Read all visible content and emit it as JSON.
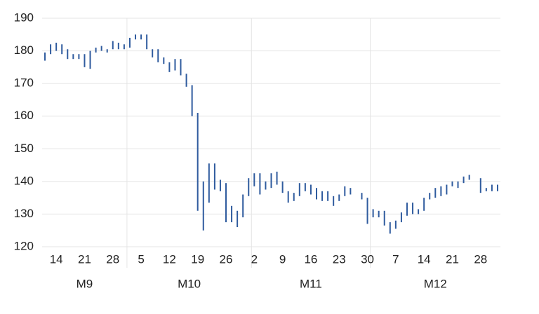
{
  "chart_data": {
    "type": "range",
    "categories": [
      null,
      null,
      "14",
      null,
      null,
      null,
      null,
      "21",
      null,
      null,
      null,
      null,
      "28",
      null,
      null,
      null,
      null,
      "5",
      null,
      null,
      null,
      null,
      "12",
      null,
      null,
      null,
      null,
      "19",
      null,
      null,
      null,
      null,
      "26",
      null,
      null,
      null,
      null,
      "2",
      null,
      null,
      null,
      null,
      "9",
      null,
      null,
      null,
      null,
      "16",
      null,
      null,
      null,
      null,
      "23",
      null,
      null,
      null,
      null,
      "30",
      null,
      null,
      null,
      null,
      "7",
      null,
      null,
      null,
      null,
      "14",
      null,
      null,
      null,
      null,
      "21",
      null,
      null,
      null,
      null,
      "28",
      null,
      null,
      null
    ],
    "x_groups": [
      {
        "label": "M9",
        "start": 0,
        "end": 14
      },
      {
        "label": "M10",
        "start": 15,
        "end": 36
      },
      {
        "label": "M11",
        "start": 37,
        "end": 57
      },
      {
        "label": "M12",
        "start": 58,
        "end": 80
      }
    ],
    "low": [
      177,
      179,
      180,
      179,
      177.5,
      177.5,
      177.5,
      175,
      174.5,
      179.5,
      180,
      179.5,
      180.5,
      180.5,
      180.5,
      181,
      183.5,
      183.5,
      180.5,
      178,
      176.5,
      176,
      173.5,
      174,
      172.5,
      169,
      160,
      131,
      125,
      133.5,
      137.5,
      137,
      127.5,
      127.5,
      126,
      129,
      135.5,
      138.5,
      136,
      137.5,
      138,
      139,
      136.5,
      133.5,
      134,
      135.5,
      137,
      136,
      134.5,
      134,
      134,
      132.5,
      134,
      135.5,
      136,
      null,
      134.5,
      127,
      129,
      129,
      126.5,
      124,
      125.5,
      127.5,
      129.5,
      130,
      130,
      131,
      134.5,
      135,
      135.5,
      136,
      138.5,
      138,
      139.5,
      140.5,
      null,
      136.5,
      137,
      137,
      137
    ],
    "high": [
      179.5,
      182,
      182.5,
      182,
      180.5,
      179,
      179,
      179,
      180,
      181,
      181.5,
      180.5,
      183,
      182.5,
      182,
      184,
      185,
      185,
      185,
      180.5,
      180.5,
      178,
      176.5,
      177.5,
      177.5,
      173,
      169.5,
      161,
      140,
      145.5,
      145.5,
      140.5,
      139.5,
      132.5,
      131,
      136,
      141,
      142.5,
      142.5,
      140,
      142.5,
      143,
      140,
      137,
      136.5,
      139.5,
      139.5,
      139,
      138,
      137,
      137,
      135.5,
      136,
      138.5,
      138,
      null,
      136.5,
      135,
      131.5,
      131,
      131,
      127.5,
      128,
      130.5,
      133.5,
      133.5,
      131.5,
      135,
      136.5,
      138,
      138.5,
      139,
      140,
      140,
      141.5,
      142,
      null,
      141,
      138,
      139,
      139
    ],
    "color": "#2f5b9e",
    "ylim": [
      120,
      190
    ],
    "yticks": [
      120,
      130,
      140,
      150,
      160,
      170,
      180,
      190
    ],
    "grid": true
  }
}
